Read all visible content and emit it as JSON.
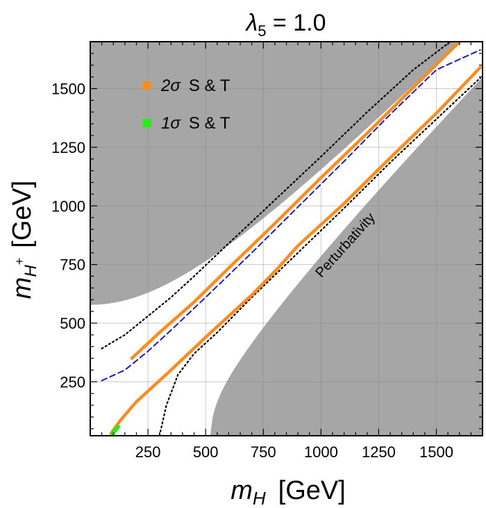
{
  "chart_data": {
    "type": "region-plot",
    "title": "λ5 = 1.0",
    "title_parts": {
      "symbol": "λ",
      "subscript": "5",
      "rest": " = 1.0"
    },
    "xlabel": "m_H  [GeV]",
    "xlabel_parts": {
      "symbol": "m",
      "subscript": "H",
      "units": "[GeV]"
    },
    "ylabel": "m_H+ [GeV]",
    "ylabel_parts": {
      "symbol": "m",
      "subscript": "H",
      "superscript": "+",
      "units": "[GeV]"
    },
    "xlim": [
      0,
      1700
    ],
    "ylim": [
      20,
      1700
    ],
    "xticks": [
      250,
      500,
      750,
      1000,
      1250,
      1500
    ],
    "yticks": [
      250,
      500,
      750,
      1000,
      1250,
      1500
    ],
    "grid": true,
    "legend": {
      "placement": "top-left",
      "entries": [
        {
          "symbol": "2σ",
          "label": "S & T",
          "color": "#ff8c1a"
        },
        {
          "symbol": "1σ",
          "label": "S & T",
          "color": "#22ee11"
        }
      ]
    },
    "annotations": [
      {
        "text": "Perturbativity",
        "near": [
          1050,
          900
        ],
        "angle_deg": -48
      }
    ],
    "excluded_region": {
      "name": "Perturbativity",
      "color": "#a6a6a6",
      "upper_boundary_intercept": 578,
      "lower_boundary_start_x": 520
    },
    "series": [
      {
        "name": "blue-dashed",
        "color": "#1a1acc",
        "style": "dashed",
        "points": [
          [
            50,
            255
          ],
          [
            150,
            300
          ],
          [
            250,
            380
          ],
          [
            350,
            470
          ],
          [
            500,
            610
          ],
          [
            700,
            800
          ],
          [
            900,
            995
          ],
          [
            1100,
            1190
          ],
          [
            1300,
            1390
          ],
          [
            1500,
            1580
          ],
          [
            1690,
            1665
          ]
        ]
      },
      {
        "name": "black-dotted-upper",
        "color": "#000000",
        "style": "dotted",
        "points": [
          [
            50,
            392
          ],
          [
            150,
            450
          ],
          [
            250,
            530
          ],
          [
            350,
            610
          ],
          [
            450,
            700
          ],
          [
            600,
            840
          ],
          [
            800,
            1025
          ],
          [
            1000,
            1210
          ],
          [
            1200,
            1400
          ],
          [
            1400,
            1580
          ],
          [
            1560,
            1700
          ]
        ]
      },
      {
        "name": "black-dotted-lower",
        "color": "#000000",
        "style": "dotted",
        "points": [
          [
            300,
            20
          ],
          [
            330,
            150
          ],
          [
            380,
            280
          ],
          [
            450,
            370
          ],
          [
            550,
            460
          ],
          [
            700,
            610
          ],
          [
            900,
            800
          ],
          [
            1100,
            990
          ],
          [
            1300,
            1185
          ],
          [
            1500,
            1370
          ],
          [
            1690,
            1545
          ]
        ]
      },
      {
        "name": "orange-band-upper",
        "color": "#ff8c1a",
        "style": "band",
        "points": [
          [
            180,
            350
          ],
          [
            300,
            460
          ],
          [
            450,
            590
          ],
          [
            600,
            735
          ],
          [
            800,
            925
          ],
          [
            1000,
            1120
          ],
          [
            1200,
            1310
          ],
          [
            1400,
            1505
          ],
          [
            1600,
            1700
          ]
        ]
      },
      {
        "name": "orange-band-lower",
        "color": "#ff8c1a",
        "style": "band",
        "points": [
          [
            90,
            30
          ],
          [
            130,
            85
          ],
          [
            200,
            165
          ],
          [
            350,
            300
          ],
          [
            500,
            440
          ],
          [
            700,
            620
          ],
          [
            800,
            720
          ],
          [
            900,
            830
          ],
          [
            1100,
            1010
          ],
          [
            1300,
            1205
          ],
          [
            1500,
            1395
          ],
          [
            1690,
            1590
          ]
        ]
      },
      {
        "name": "green-band",
        "color": "#22ee11",
        "style": "band",
        "points": [
          [
            95,
            25
          ],
          [
            105,
            40
          ],
          [
            120,
            58
          ]
        ]
      }
    ]
  }
}
